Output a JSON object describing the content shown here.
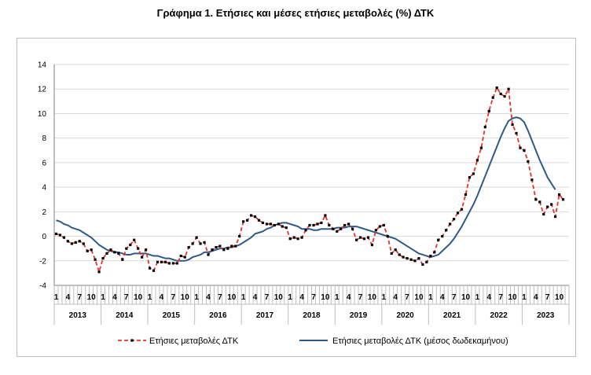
{
  "title": "Γράφημα 1. Ετήσιες και μέσες ετήσιες μεταβολές (%) ΔΤΚ",
  "colors": {
    "annual": "#e8332a",
    "marker": "#000000",
    "average": "#2d5a87",
    "grid": "#d9d9d9"
  },
  "chart_data": {
    "type": "line",
    "title": "Γράφημα 1. Ετήσιες και μέσες ετήσιες μεταβολές (%) ΔΤΚ",
    "xlabel": "",
    "ylabel": "",
    "ylim": [
      -4,
      14
    ],
    "yticks": [
      -4,
      -2,
      0,
      2,
      4,
      6,
      8,
      10,
      12,
      14
    ],
    "grid": "horizontal",
    "legend": "bottom",
    "years": [
      "2013",
      "2014",
      "2015",
      "2016",
      "2017",
      "2018",
      "2019",
      "2020",
      "2021",
      "2022",
      "2023"
    ],
    "month_ticks": [
      "1",
      "4",
      "7",
      "10"
    ],
    "series": [
      {
        "name": "Ετήσιες μεταβολές ΔΤΚ",
        "style": "dashed-with-markers",
        "values": [
          0.2,
          0.1,
          -0.1,
          -0.4,
          -0.6,
          -0.5,
          -0.4,
          -0.6,
          -1.2,
          -1.1,
          -1.9,
          -2.9,
          -1.8,
          -1.4,
          -1.1,
          -1.3,
          -1.4,
          -1.9,
          -1.0,
          -0.7,
          -0.3,
          -1.0,
          -1.7,
          -1.1,
          -2.6,
          -2.8,
          -2.1,
          -2.1,
          -2.1,
          -2.2,
          -2.2,
          -2.2,
          -1.6,
          -1.7,
          -0.9,
          -0.6,
          -0.1,
          -0.6,
          -0.5,
          -1.5,
          -1.1,
          -0.9,
          -0.8,
          -1.1,
          -1.0,
          -0.8,
          -0.8,
          0.0,
          1.2,
          1.3,
          1.7,
          1.6,
          1.3,
          1.1,
          1.0,
          1.0,
          0.9,
          1.0,
          0.8,
          0.7,
          -0.2,
          -0.1,
          -0.2,
          -0.1,
          0.5,
          0.9,
          0.9,
          1.0,
          1.1,
          1.7,
          0.9,
          0.6,
          0.4,
          0.6,
          0.9,
          1.0,
          0.6,
          -0.3,
          -0.1,
          -0.2,
          -0.1,
          -0.7,
          0.5,
          0.8,
          0.9,
          0.0,
          -1.4,
          -1.1,
          -1.5,
          -1.7,
          -1.8,
          -1.9,
          -2.0,
          -1.8,
          -2.3,
          -2.1,
          -1.6,
          -1.3,
          -0.3,
          0.0,
          0.5,
          1.0,
          1.4,
          1.9,
          2.2,
          3.4,
          4.8,
          5.1,
          6.2,
          7.2,
          8.9,
          10.2,
          11.3,
          12.1,
          11.6,
          11.4,
          12.0,
          9.1,
          8.4,
          7.2,
          7.0,
          6.1,
          4.6,
          3.0,
          2.8,
          1.8,
          2.4,
          2.6,
          1.6,
          3.4,
          3.0
        ]
      },
      {
        "name": "Ετήσιες μεταβολές ΔΤΚ (μέσος δωδεκαμήνου)",
        "style": "solid",
        "values": [
          1.3,
          1.2,
          1.0,
          0.9,
          0.7,
          0.6,
          0.5,
          0.3,
          0.1,
          -0.1,
          -0.4,
          -0.7,
          -0.9,
          -1.1,
          -1.2,
          -1.3,
          -1.3,
          -1.4,
          -1.5,
          -1.5,
          -1.4,
          -1.4,
          -1.4,
          -1.4,
          -1.5,
          -1.6,
          -1.6,
          -1.7,
          -1.8,
          -1.8,
          -1.9,
          -2.0,
          -2.0,
          -2.0,
          -1.9,
          -1.7,
          -1.6,
          -1.5,
          -1.3,
          -1.3,
          -1.2,
          -1.1,
          -1.0,
          -1.0,
          -0.9,
          -0.9,
          -0.8,
          -0.7,
          -0.5,
          -0.3,
          -0.1,
          0.2,
          0.3,
          0.4,
          0.6,
          0.7,
          0.9,
          1.0,
          1.1,
          1.1,
          1.0,
          0.9,
          0.8,
          0.6,
          0.6,
          0.6,
          0.5,
          0.5,
          0.6,
          0.6,
          0.6,
          0.6,
          0.7,
          0.7,
          0.7,
          0.8,
          0.8,
          0.8,
          0.7,
          0.6,
          0.5,
          0.4,
          0.3,
          0.2,
          0.1,
          0.0,
          -0.1,
          -0.2,
          -0.4,
          -0.6,
          -0.8,
          -1.0,
          -1.2,
          -1.4,
          -1.5,
          -1.6,
          -1.7,
          -1.6,
          -1.5,
          -1.2,
          -0.9,
          -0.6,
          -0.2,
          0.3,
          0.8,
          1.4,
          2.0,
          2.6,
          3.3,
          4.1,
          4.9,
          5.7,
          6.5,
          7.3,
          8.1,
          8.8,
          9.4,
          9.6,
          9.7,
          9.6,
          9.3,
          8.6,
          7.8,
          7.0,
          6.2,
          5.5,
          4.8,
          4.3,
          3.8
        ]
      }
    ]
  }
}
